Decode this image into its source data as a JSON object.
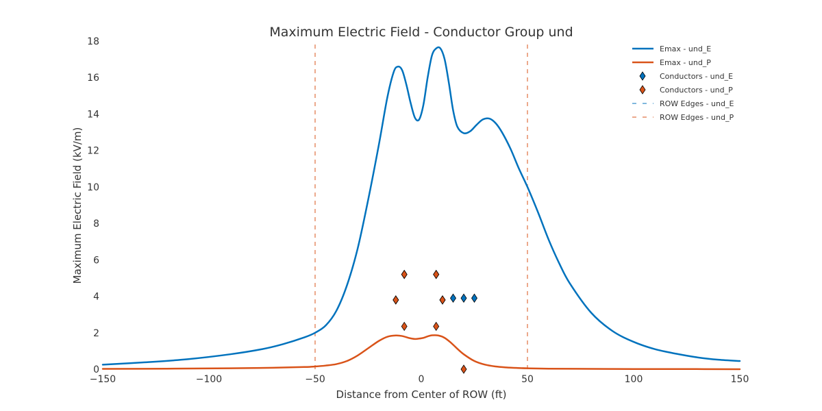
{
  "chart_data": {
    "type": "line",
    "title": "Maximum Electric Field - Conductor Group und",
    "xlabel": "Distance from Center of ROW (ft)",
    "ylabel": "Maximum Electric Field (kV/m)",
    "xlim": [
      -150,
      150
    ],
    "ylim": [
      0,
      18
    ],
    "xticks": [
      -150,
      -100,
      -50,
      0,
      50,
      100,
      150
    ],
    "xtick_labels": [
      "−150",
      "−100",
      "−50",
      "0",
      "50",
      "100",
      "150"
    ],
    "yticks": [
      0,
      2,
      4,
      6,
      8,
      10,
      12,
      14,
      16,
      18
    ],
    "ytick_labels": [
      "0",
      "2",
      "4",
      "6",
      "8",
      "10",
      "12",
      "14",
      "16",
      "18"
    ],
    "grid": false,
    "legend_position": "top-right",
    "colors": {
      "und_E": "#0072bd",
      "und_P": "#d95319"
    },
    "series": [
      {
        "name": "Emax - und_E",
        "kind": "line",
        "color": "#0072bd",
        "x": [
          -150,
          -130,
          -110,
          -90,
          -75,
          -65,
          -55,
          -50,
          -45,
          -40,
          -35,
          -30,
          -25,
          -20,
          -16,
          -13,
          -11,
          -9,
          -7,
          -5,
          -3,
          -1,
          1,
          3,
          5,
          7,
          9,
          11,
          13,
          15,
          17,
          20,
          23,
          26,
          29,
          32,
          35,
          38,
          42,
          46,
          50,
          55,
          60,
          65,
          70,
          80,
          90,
          100,
          110,
          120,
          130,
          140,
          150
        ],
        "y": [
          0.25,
          0.38,
          0.55,
          0.82,
          1.1,
          1.38,
          1.75,
          2.0,
          2.4,
          3.2,
          4.6,
          6.6,
          9.3,
          12.3,
          14.9,
          16.3,
          16.6,
          16.4,
          15.6,
          14.6,
          13.8,
          13.7,
          14.5,
          16.0,
          17.2,
          17.6,
          17.6,
          17.0,
          15.7,
          14.2,
          13.3,
          12.95,
          13.05,
          13.4,
          13.7,
          13.75,
          13.5,
          13.0,
          12.1,
          11.0,
          10.0,
          8.6,
          7.1,
          5.8,
          4.7,
          3.1,
          2.1,
          1.5,
          1.1,
          0.85,
          0.65,
          0.52,
          0.45
        ]
      },
      {
        "name": "Emax - und_P",
        "kind": "line",
        "color": "#d95319",
        "x": [
          -150,
          -120,
          -90,
          -70,
          -55,
          -50,
          -45,
          -40,
          -35,
          -30,
          -25,
          -20,
          -16,
          -12,
          -9,
          -6,
          -3,
          -1,
          1,
          3,
          5,
          8,
          11,
          14,
          17,
          20,
          25,
          30,
          35,
          40,
          45,
          50,
          60,
          80,
          100,
          120,
          150
        ],
        "y": [
          0.02,
          0.03,
          0.05,
          0.08,
          0.12,
          0.15,
          0.2,
          0.28,
          0.45,
          0.75,
          1.15,
          1.55,
          1.78,
          1.85,
          1.82,
          1.72,
          1.66,
          1.68,
          1.72,
          1.8,
          1.86,
          1.85,
          1.72,
          1.45,
          1.12,
          0.82,
          0.45,
          0.25,
          0.15,
          0.1,
          0.07,
          0.05,
          0.03,
          0.02,
          0.01,
          0.01,
          0.0
        ]
      },
      {
        "name": "Conductors - und_E",
        "kind": "scatter",
        "marker": "diamond",
        "color": "#0072bd",
        "x": [
          -12,
          -8,
          7,
          10,
          15,
          20,
          25
        ],
        "y": [
          3.8,
          5.2,
          5.2,
          3.8,
          3.9,
          3.9,
          3.9
        ]
      },
      {
        "name": "Conductors - und_P",
        "kind": "scatter",
        "marker": "diamond",
        "color": "#d95319",
        "x": [
          -12,
          -8,
          -8,
          7,
          7,
          10,
          20
        ],
        "y": [
          3.8,
          5.2,
          2.35,
          5.2,
          2.35,
          3.8,
          0
        ]
      },
      {
        "name": "ROW Edges - und_E",
        "kind": "vline",
        "color": "#0072bd",
        "x": [
          -50,
          50
        ]
      },
      {
        "name": "ROW Edges - und_P",
        "kind": "vline",
        "color": "#d95319",
        "x": [
          -50,
          50
        ]
      }
    ]
  }
}
